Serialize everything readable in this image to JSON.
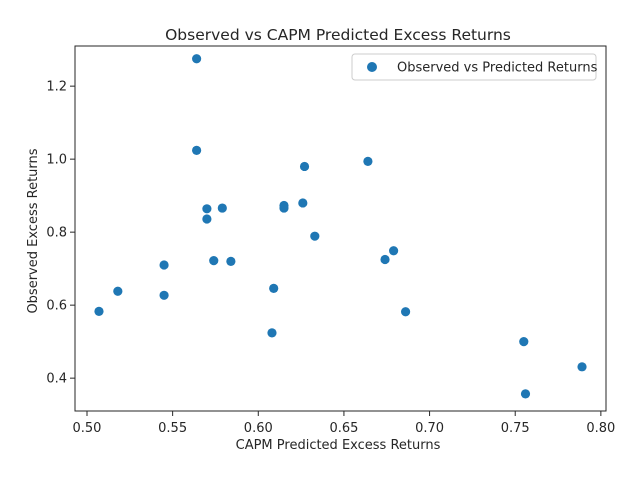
{
  "chart_data": {
    "type": "scatter",
    "title": "Observed vs CAPM Predicted Excess Returns",
    "xlabel": "CAPM Predicted Excess Returns",
    "ylabel": "Observed Excess Returns",
    "xlim": [
      0.493,
      0.803
    ],
    "ylim": [
      0.31,
      1.31
    ],
    "xticks": [
      0.5,
      0.55,
      0.6,
      0.65,
      0.7,
      0.75,
      0.8
    ],
    "xtick_labels": [
      "0.50",
      "0.55",
      "0.60",
      "0.65",
      "0.70",
      "0.75",
      "0.80"
    ],
    "yticks": [
      0.4,
      0.6,
      0.8,
      1.0,
      1.2
    ],
    "ytick_labels": [
      "0.4",
      "0.6",
      "0.8",
      "1.0",
      "1.2"
    ],
    "grid": false,
    "legend": {
      "position": "upper-right"
    },
    "series": [
      {
        "name": "Observed vs Predicted Returns",
        "color": "#1f77b4",
        "points": [
          [
            0.507,
            0.583
          ],
          [
            0.518,
            0.638
          ],
          [
            0.545,
            0.71
          ],
          [
            0.545,
            0.627
          ],
          [
            0.564,
            1.275
          ],
          [
            0.564,
            1.024
          ],
          [
            0.57,
            0.864
          ],
          [
            0.57,
            0.836
          ],
          [
            0.574,
            0.722
          ],
          [
            0.579,
            0.866
          ],
          [
            0.584,
            0.72
          ],
          [
            0.608,
            0.524
          ],
          [
            0.609,
            0.646
          ],
          [
            0.615,
            0.873
          ],
          [
            0.615,
            0.866
          ],
          [
            0.626,
            0.88
          ],
          [
            0.627,
            0.98
          ],
          [
            0.633,
            0.789
          ],
          [
            0.664,
            0.994
          ],
          [
            0.674,
            0.725
          ],
          [
            0.679,
            0.749
          ],
          [
            0.686,
            0.582
          ],
          [
            0.755,
            0.5
          ],
          [
            0.756,
            0.357
          ],
          [
            0.789,
            0.431
          ]
        ]
      }
    ]
  }
}
